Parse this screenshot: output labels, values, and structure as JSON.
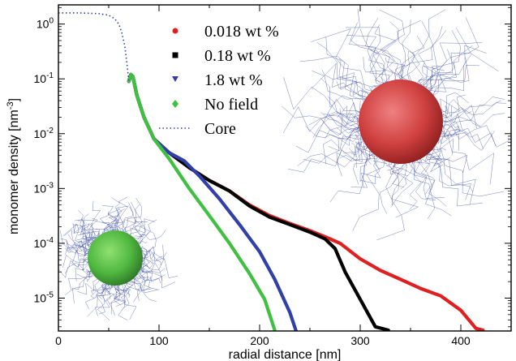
{
  "chart_data": {
    "type": "line",
    "xlabel": "radial distance [nm]",
    "ylabel": "monomer density [nm",
    "ylabel_sup": "-3",
    "ylabel_close": "]",
    "xlim": [
      0,
      450
    ],
    "ylim_log10": [
      -5.6,
      0.35
    ],
    "x_ticks": [
      0,
      100,
      200,
      300,
      400
    ],
    "x_tick_labels": [
      "0",
      "100",
      "200",
      "300",
      "400"
    ],
    "y_ticks_exp": [
      -5,
      -4,
      -3,
      -2,
      -1,
      0
    ],
    "y_tick_base": "10",
    "y_tick_exps": [
      "-5",
      "-4",
      "-3",
      "-2",
      "-1",
      "0"
    ],
    "legend_position": "top-center",
    "series": [
      {
        "name": "0.018 wt %",
        "color": "#e02020",
        "marker": "circle",
        "style": "markers",
        "points": [
          [
            70,
            0.09
          ],
          [
            72,
            0.12
          ],
          [
            74,
            0.11
          ],
          [
            78,
            0.05
          ],
          [
            85,
            0.02
          ],
          [
            95,
            0.008
          ],
          [
            110,
            0.0045
          ],
          [
            130,
            0.0024
          ],
          [
            150,
            0.0014
          ],
          [
            170,
            0.0009
          ],
          [
            190,
            0.0005
          ],
          [
            210,
            0.00032
          ],
          [
            230,
            0.00023
          ],
          [
            250,
            0.00017
          ],
          [
            270,
            0.00012
          ],
          [
            280,
            0.0001
          ],
          [
            300,
            5.2e-05
          ],
          [
            320,
            3.2e-05
          ],
          [
            340,
            2.2e-05
          ],
          [
            360,
            1.5e-05
          ],
          [
            380,
            1.1e-05
          ],
          [
            400,
            6e-06
          ],
          [
            415,
            2.8e-06
          ],
          [
            422,
            2.6e-06
          ]
        ]
      },
      {
        "name": "0.18 wt %",
        "color": "#000000",
        "marker": "square",
        "style": "markers",
        "points": [
          [
            70,
            0.09
          ],
          [
            72,
            0.12
          ],
          [
            74,
            0.11
          ],
          [
            78,
            0.05
          ],
          [
            85,
            0.02
          ],
          [
            95,
            0.008
          ],
          [
            110,
            0.0045
          ],
          [
            130,
            0.0024
          ],
          [
            150,
            0.0014
          ],
          [
            170,
            0.0009
          ],
          [
            190,
            0.00048
          ],
          [
            210,
            0.0003
          ],
          [
            230,
            0.00022
          ],
          [
            250,
            0.00016
          ],
          [
            265,
            0.00012
          ],
          [
            275,
            8e-05
          ],
          [
            285,
            3e-05
          ],
          [
            300,
            9.5e-06
          ],
          [
            315,
            3e-06
          ],
          [
            328,
            2.6e-06
          ]
        ]
      },
      {
        "name": "1.8 wt %",
        "color": "#3040a8",
        "marker": "triangle-down",
        "style": "markers",
        "points": [
          [
            70,
            0.09
          ],
          [
            72,
            0.12
          ],
          [
            74,
            0.11
          ],
          [
            78,
            0.05
          ],
          [
            85,
            0.02
          ],
          [
            95,
            0.008
          ],
          [
            110,
            0.0045
          ],
          [
            125,
            0.0032
          ],
          [
            140,
            0.0017
          ],
          [
            160,
            0.00065
          ],
          [
            180,
            0.00022
          ],
          [
            200,
            7e-05
          ],
          [
            215,
            2.2e-05
          ],
          [
            230,
            5.5e-06
          ],
          [
            236,
            2.6e-06
          ]
        ]
      },
      {
        "name": "No field",
        "color": "#40c040",
        "marker": "diamond",
        "style": "markers",
        "points": [
          [
            70,
            0.09
          ],
          [
            72,
            0.12
          ],
          [
            74,
            0.11
          ],
          [
            78,
            0.05
          ],
          [
            85,
            0.02
          ],
          [
            95,
            0.008
          ],
          [
            110,
            0.0035
          ],
          [
            130,
            0.001
          ],
          [
            150,
            0.00032
          ],
          [
            170,
            0.0001
          ],
          [
            190,
            2.8e-05
          ],
          [
            205,
            9.5e-06
          ],
          [
            215,
            2.6e-06
          ]
        ]
      },
      {
        "name": "Core",
        "color": "#3040a8",
        "marker": "none",
        "style": "dotted",
        "points": [
          [
            0,
            1.6
          ],
          [
            20,
            1.6
          ],
          [
            40,
            1.55
          ],
          [
            50,
            1.45
          ],
          [
            56,
            1.25
          ],
          [
            60,
            1.0
          ],
          [
            63,
            0.7
          ],
          [
            66,
            0.4
          ],
          [
            68,
            0.2
          ],
          [
            70,
            0.09
          ]
        ]
      }
    ]
  }
}
